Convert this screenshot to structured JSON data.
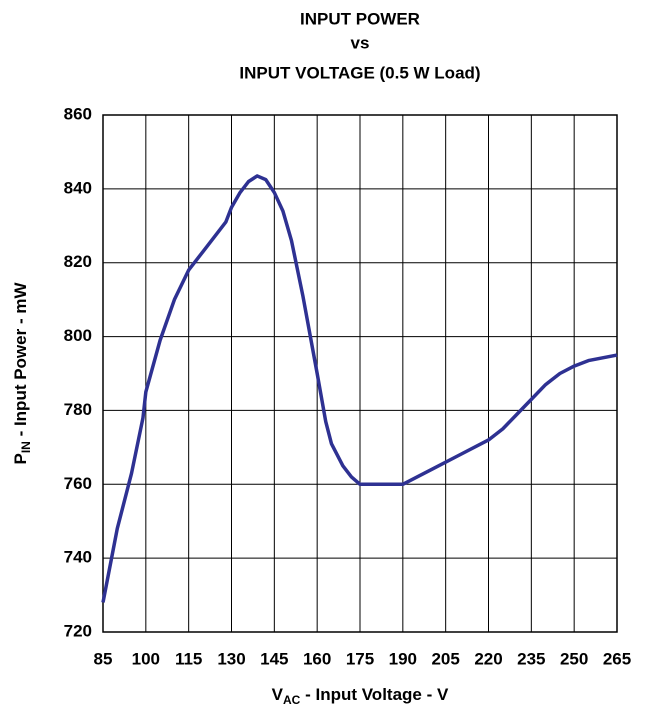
{
  "chart_data": {
    "type": "line",
    "title": [
      "INPUT POWER",
      "vs",
      "INPUT VOLTAGE (0.5 W Load)"
    ],
    "x_label": {
      "main": "V",
      "sub": "AC",
      "rest": " - Input Voltage - V"
    },
    "y_label": {
      "main": "P",
      "sub": "IN",
      "rest": " - Input Power - mW"
    },
    "x": [
      85,
      88,
      90,
      95,
      99,
      100,
      105,
      110,
      115,
      120,
      125,
      128,
      130,
      133,
      136,
      139,
      142,
      145,
      148,
      151,
      155,
      160,
      163,
      165,
      169,
      172,
      175,
      180,
      185,
      190,
      195,
      200,
      210,
      220,
      225,
      230,
      235,
      240,
      245,
      250,
      255,
      265
    ],
    "series": [
      {
        "color": "#2e3192",
        "values": [
          728,
          740,
          748,
          763,
          778,
          785,
          799,
          810,
          818,
          823,
          828,
          831,
          835,
          839,
          842,
          843.5,
          842.5,
          839,
          834,
          826,
          811,
          790,
          777,
          771,
          765,
          762,
          760,
          760,
          760,
          760,
          762,
          764,
          768,
          772,
          775,
          779,
          783,
          787,
          790,
          792,
          793.5,
          795
        ]
      }
    ],
    "xlim": [
      85,
      265
    ],
    "xticks": [
      85,
      100,
      115,
      130,
      145,
      160,
      175,
      190,
      205,
      220,
      235,
      250,
      265
    ],
    "ylim": [
      720,
      860
    ],
    "yticks": [
      720,
      740,
      760,
      780,
      800,
      820,
      840,
      860
    ],
    "grid": true
  }
}
